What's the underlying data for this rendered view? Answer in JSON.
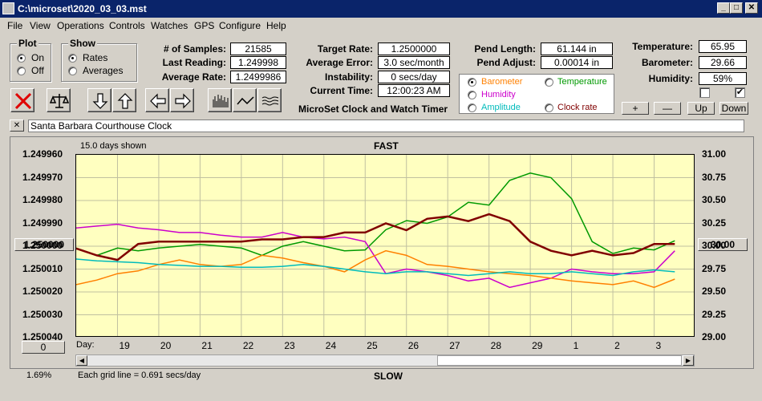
{
  "window": {
    "title": "C:\\microset\\2020_03_03.mst",
    "btn_min": "_",
    "btn_max": "□",
    "btn_close": "✕"
  },
  "menu": [
    "File",
    "View",
    "Operations",
    "Controls",
    "Watches",
    "GPS",
    "Configure",
    "Help"
  ],
  "plot_group": {
    "title": "Plot",
    "on": "On",
    "off": "Off",
    "selected": "On"
  },
  "show_group": {
    "title": "Show",
    "rates": "Rates",
    "averages": "Averages",
    "selected": "Rates"
  },
  "stats": {
    "samples_label": "# of Samples:",
    "samples": "21585",
    "last_reading_label": "Last Reading:",
    "last_reading": "1.249998",
    "avg_rate_label": "Average Rate:",
    "avg_rate": "1.2499986",
    "target_rate_label": "Target Rate:",
    "target_rate": "1.2500000",
    "avg_error_label": "Average Error:",
    "avg_error": "3.0 sec/month",
    "instability_label": "Instability:",
    "instability": "0 secs/day",
    "current_time_label": "Current Time:",
    "current_time": "12:00:23 AM",
    "pend_length_label": "Pend Length:",
    "pend_length": "61.144 in",
    "pend_adjust_label": "Pend Adjust:",
    "pend_adjust": "0.00014 in",
    "temperature_label": "Temperature:",
    "temperature": "65.95",
    "barometer_label": "Barometer:",
    "barometer": "29.66",
    "humidity_label": "Humidity:",
    "humidity": "59%"
  },
  "app_caption": "MicroSet Clock and Watch Timer",
  "overlay_options": {
    "barometer": "Barometer",
    "temperature": "Temperature",
    "humidity": "Humidity",
    "amplitude": "Amplitude",
    "clock_rate": "Clock rate",
    "selected": "Barometer",
    "colors": {
      "barometer": "#ff8000",
      "temperature": "#009900",
      "humidity": "#cc00cc",
      "amplitude": "#00bbbb",
      "clock_rate": "#800000"
    }
  },
  "adjust_buttons": {
    "plus": "+",
    "minus": "—",
    "up": "Up",
    "down": "Down"
  },
  "clock_name": "Santa Barbara Courthouse Clock",
  "clock_clear": "✕",
  "chart_header": {
    "days_shown": "15.0 days shown",
    "fast": "FAST",
    "slow": "SLOW",
    "grid_note": "Each grid line = 0.691 secs/day",
    "percent": "1.69%",
    "left_button": "1.250000",
    "right_button": "30.00",
    "bottom_button": "0",
    "day_label": "Day:"
  },
  "chart_data": {
    "type": "line",
    "title": "",
    "yleft_ticks": [
      "1.249960",
      "1.249970",
      "1.249980",
      "1.249990",
      "1.250000",
      "1.250010",
      "1.250020",
      "1.250030",
      "1.250040"
    ],
    "yright_ticks": [
      "31.00",
      "30.75",
      "30.50",
      "30.25",
      "30.00",
      "29.75",
      "29.50",
      "29.25",
      "29.00"
    ],
    "x_ticks": [
      "19",
      "20",
      "21",
      "22",
      "23",
      "24",
      "25",
      "26",
      "27",
      "28",
      "29",
      "1",
      "2",
      "3"
    ],
    "x_range": [
      0,
      15
    ],
    "yleft_range": [
      1.24996,
      1.25004
    ],
    "yright_range": [
      29.0,
      31.0
    ],
    "grid": true,
    "series": [
      {
        "name": "Clock rate",
        "color": "#800000",
        "axis": "left",
        "x": [
          0,
          0.5,
          1,
          1.5,
          2,
          2.5,
          3,
          3.5,
          4,
          4.5,
          5,
          5.5,
          6,
          6.5,
          7,
          7.5,
          8,
          8.5,
          9,
          9.5,
          10,
          10.5,
          11,
          11.5,
          12,
          12.5,
          13,
          13.5,
          14,
          14.5
        ],
        "values": [
          1.250001,
          1.250004,
          1.250006,
          1.249999,
          1.249998,
          1.249998,
          1.249998,
          1.249998,
          1.249998,
          1.249997,
          1.249997,
          1.249996,
          1.249996,
          1.249994,
          1.249994,
          1.24999,
          1.249993,
          1.249988,
          1.249987,
          1.249989,
          1.249986,
          1.249989,
          1.249998,
          1.250002,
          1.250004,
          1.250002,
          1.250004,
          1.250003,
          1.249999,
          1.249999
        ]
      },
      {
        "name": "Temperature",
        "color": "#009900",
        "axis": "right",
        "x": [
          0,
          0.5,
          1,
          1.5,
          2,
          2.5,
          3,
          3.5,
          4,
          4.5,
          5,
          5.5,
          6,
          6.5,
          7,
          7.5,
          8,
          8.5,
          9,
          9.5,
          10,
          10.5,
          11,
          11.5,
          12,
          12.5,
          13,
          13.5,
          14,
          14.5
        ],
        "values": [
          29.98,
          29.9,
          29.98,
          29.95,
          29.98,
          30.0,
          30.02,
          30.0,
          29.98,
          29.9,
          30.0,
          30.05,
          30.0,
          29.95,
          29.96,
          30.18,
          30.28,
          30.25,
          30.32,
          30.48,
          30.45,
          30.72,
          30.8,
          30.75,
          30.52,
          30.05,
          29.92,
          29.98,
          29.96,
          30.06
        ]
      },
      {
        "name": "Humidity",
        "color": "#cc00cc",
        "axis": "right",
        "x": [
          0,
          0.5,
          1,
          1.5,
          2,
          2.5,
          3,
          3.5,
          4,
          4.5,
          5,
          5.5,
          6,
          6.5,
          7,
          7.5,
          8,
          8.5,
          9,
          9.5,
          10,
          10.5,
          11,
          11.5,
          12,
          12.5,
          13,
          13.5,
          14,
          14.5
        ],
        "values": [
          30.2,
          30.22,
          30.24,
          30.2,
          30.18,
          30.15,
          30.15,
          30.12,
          30.1,
          30.1,
          30.15,
          30.1,
          30.08,
          30.1,
          30.05,
          29.7,
          29.75,
          29.72,
          29.68,
          29.62,
          29.65,
          29.55,
          29.6,
          29.65,
          29.75,
          29.72,
          29.7,
          29.7,
          29.72,
          29.95
        ]
      },
      {
        "name": "Barometer",
        "color": "#ff8000",
        "axis": "right",
        "x": [
          0,
          0.5,
          1,
          1.5,
          2,
          2.5,
          3,
          3.5,
          4,
          4.5,
          5,
          5.5,
          6,
          6.5,
          7,
          7.5,
          8,
          8.5,
          9,
          9.5,
          10,
          10.5,
          11,
          11.5,
          12,
          12.5,
          13,
          13.5,
          14,
          14.5
        ],
        "values": [
          29.58,
          29.63,
          29.7,
          29.73,
          29.8,
          29.85,
          29.8,
          29.78,
          29.8,
          29.9,
          29.87,
          29.82,
          29.78,
          29.72,
          29.85,
          29.95,
          29.9,
          29.8,
          29.78,
          29.75,
          29.72,
          29.7,
          29.68,
          29.65,
          29.62,
          29.6,
          29.58,
          29.62,
          29.55,
          29.64
        ]
      },
      {
        "name": "Amplitude",
        "color": "#00bbbb",
        "axis": "right",
        "x": [
          0,
          0.5,
          1,
          1.5,
          2,
          2.5,
          3,
          3.5,
          4,
          4.5,
          5,
          5.5,
          6,
          6.5,
          7,
          7.5,
          8,
          8.5,
          9,
          9.5,
          10,
          10.5,
          11,
          11.5,
          12,
          12.5,
          13,
          13.5,
          14,
          14.5
        ],
        "values": [
          29.86,
          29.84,
          29.83,
          29.82,
          29.8,
          29.79,
          29.78,
          29.78,
          29.77,
          29.77,
          29.78,
          29.8,
          29.78,
          29.75,
          29.72,
          29.7,
          29.72,
          29.72,
          29.7,
          29.68,
          29.7,
          29.72,
          29.7,
          29.7,
          29.72,
          29.7,
          29.68,
          29.72,
          29.74,
          29.72
        ]
      }
    ]
  }
}
